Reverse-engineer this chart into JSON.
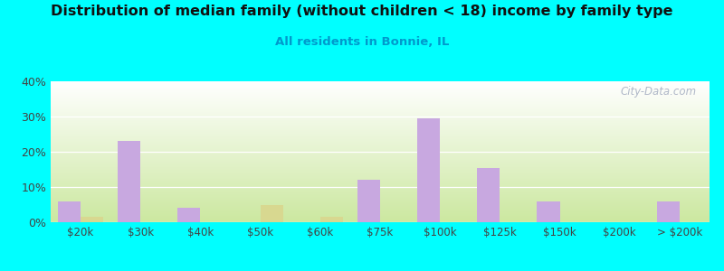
{
  "title": "Distribution of median family (without children < 18) income by family type",
  "subtitle": "All residents in Bonnie, IL",
  "background_color": "#00FFFF",
  "categories": [
    "$20k",
    "$30k",
    "$40k",
    "$50k",
    "$60k",
    "$75k",
    "$100k",
    "$125k",
    "$150k",
    "$200k",
    "> $200k"
  ],
  "married_couple": [
    6.0,
    23.0,
    4.0,
    0.0,
    0.0,
    12.0,
    29.5,
    15.5,
    6.0,
    0.0,
    6.0
  ],
  "female_no_husband": [
    1.5,
    0.0,
    0.0,
    5.0,
    1.5,
    0.0,
    0.0,
    0.0,
    0.0,
    0.0,
    0.0
  ],
  "married_color": "#c8a8e0",
  "female_color": "#d8d890",
  "grad_top": "#ffffff",
  "grad_bottom": "#cce8a0",
  "ylim": [
    0,
    40
  ],
  "yticks": [
    0,
    10,
    20,
    30,
    40
  ],
  "bar_width": 0.38,
  "watermark": "City-Data.com",
  "title_fontsize": 11.5,
  "subtitle_fontsize": 9.5,
  "subtitle_color": "#0099cc",
  "tick_fontsize": 8.5,
  "ytick_fontsize": 9
}
